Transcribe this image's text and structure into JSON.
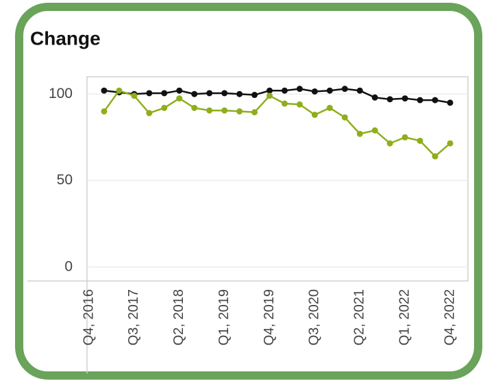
{
  "chart_data": {
    "type": "line",
    "title": "Change",
    "categories": [
      "Q4, 2016",
      null,
      null,
      "Q3, 2017",
      null,
      null,
      "Q2, 2018",
      null,
      null,
      "Q1, 2019",
      null,
      null,
      "Q4, 2019",
      null,
      null,
      "Q3, 2020",
      null,
      null,
      "Q2, 2021",
      null,
      null,
      "Q1, 2022",
      null,
      null,
      "Q4, 2022"
    ],
    "series": [
      {
        "color": "#111111",
        "values": [
          null,
          102,
          101,
          100,
          100.5,
          100.5,
          102,
          100,
          100.5,
          100.5,
          100,
          99.5,
          102,
          102,
          103,
          101.5,
          102,
          103,
          102,
          98,
          97,
          97.5,
          96.5,
          96.5,
          95
        ]
      },
      {
        "color": "#8fae1b",
        "values": [
          null,
          90,
          102,
          99,
          89,
          92,
          97.5,
          92,
          90.5,
          90.5,
          90,
          89.5,
          99,
          94.5,
          94,
          88,
          92,
          86.5,
          77,
          79,
          71.5,
          75,
          73,
          64,
          71.5
        ]
      }
    ],
    "ylim": [
      -8,
      110
    ],
    "yticks": [
      0,
      50,
      100
    ],
    "grid": true
  }
}
